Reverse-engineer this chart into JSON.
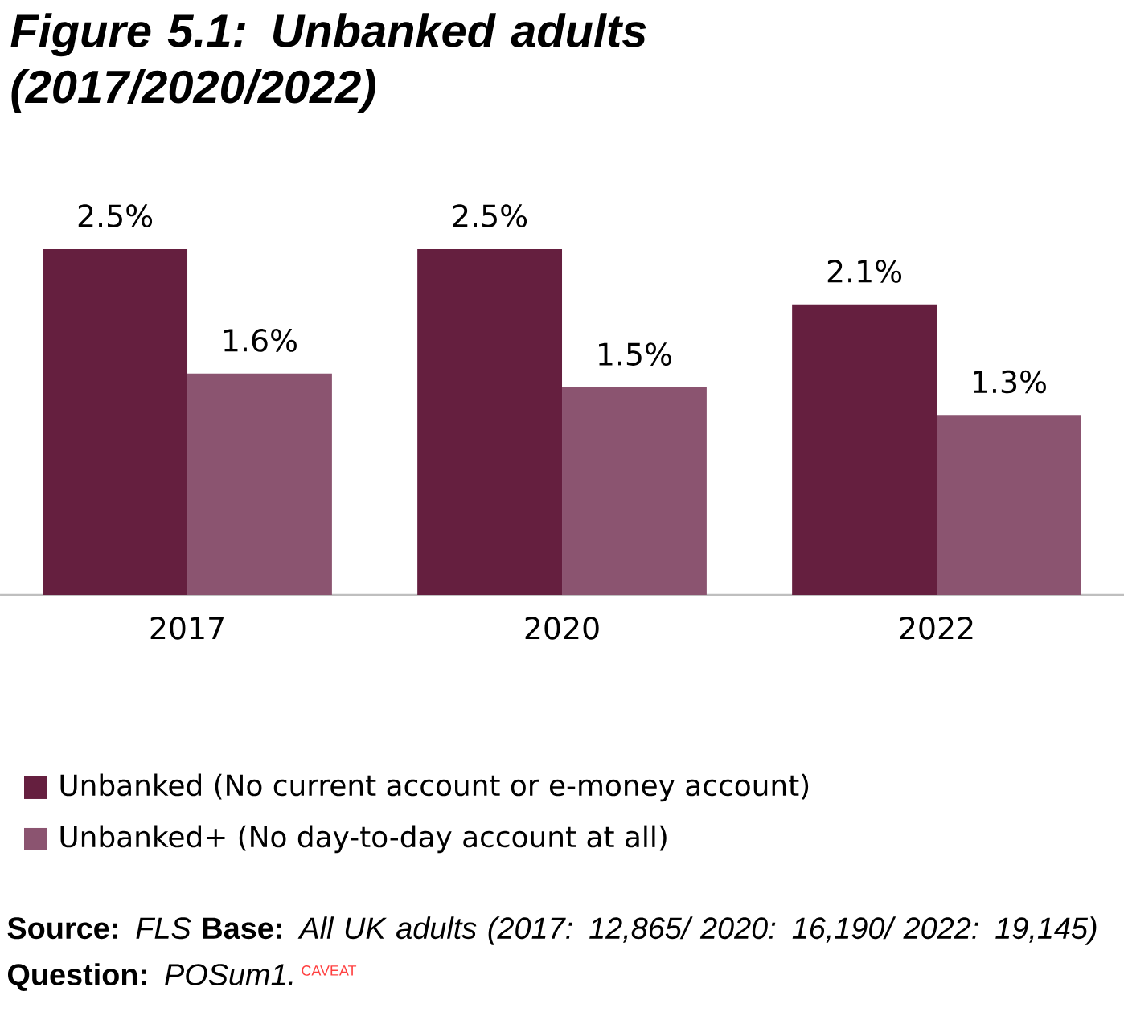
{
  "chart_data": {
    "type": "bar",
    "title": "Figure 5.1: Unbanked adults (2017/2020/2022)",
    "categories": [
      "2017",
      "2020",
      "2022"
    ],
    "series": [
      {
        "name": "Unbanked (No current account or e-money account)",
        "color": "#651f3f",
        "values": [
          2.5,
          2.5,
          2.1
        ],
        "value_labels": [
          "2.5%",
          "2.5%",
          "2.1%"
        ]
      },
      {
        "name": "Unbanked+ (No day-to-day account at all)",
        "color": "#8b5470",
        "values": [
          1.6,
          1.5,
          1.3
        ],
        "value_labels": [
          "1.6%",
          "1.5%",
          "1.3%"
        ]
      }
    ],
    "legend": "bottom",
    "annotations": [
      "**Source:** *FLS*  **Base:** *All UK adults (2017: 12,865/ 2020: 16,190/ 2022: 19,145)*  **Question:** *POSum1.*",
      "CAVEAT"
    ]
  }
}
